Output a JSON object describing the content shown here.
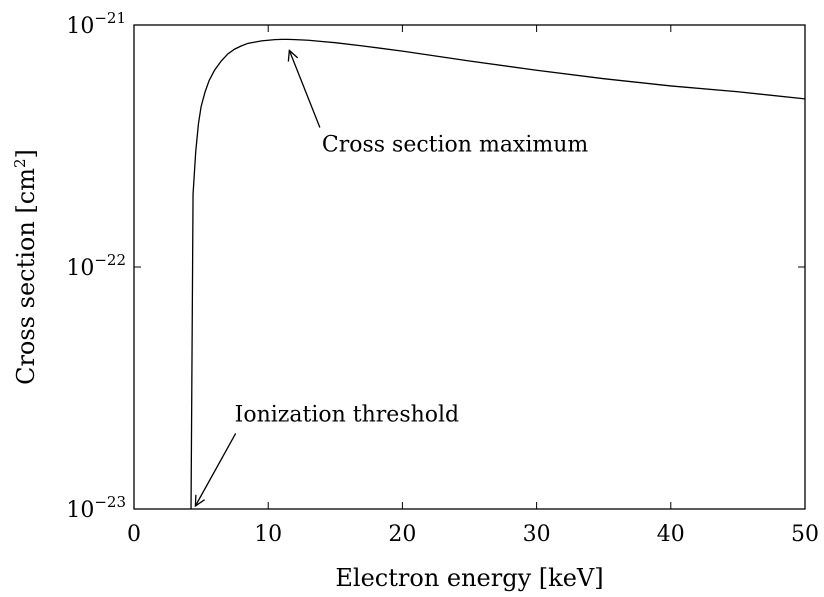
{
  "chart_data": {
    "type": "line",
    "title": "",
    "xlabel": "Electron energy [keV]",
    "ylabel": "Cross section [cm",
    "ylabel_sup": "2",
    "ylabel_close": "]",
    "xlim": [
      0,
      50
    ],
    "ylim": [
      1e-23,
      1e-21
    ],
    "yscale": "log",
    "grid": false,
    "legend": "none",
    "x_ticks": [
      0,
      10,
      20,
      30,
      40,
      50
    ],
    "x_tick_labels": [
      "0",
      "10",
      "20",
      "30",
      "40",
      "50"
    ],
    "y_ticks": [
      1e-23,
      1e-22,
      1e-21
    ],
    "y_tick_bases": [
      "10",
      "10",
      "10"
    ],
    "y_tick_exponents": [
      "−23",
      "−22",
      "−21"
    ],
    "series": [
      {
        "color": "#000000",
        "x": [
          4.25,
          4.4,
          4.6,
          4.8,
          5.0,
          5.3,
          5.6,
          6.0,
          6.5,
          7.0,
          7.5,
          8.0,
          8.5,
          9.0,
          9.5,
          10.0,
          10.5,
          11.0,
          11.5,
          12.0,
          13.0,
          14.0,
          15.0,
          17.0,
          20.0,
          25.0,
          30.0,
          35.0,
          40.0,
          45.0,
          50.0
        ],
        "y": [
          1e-23,
          2e-22,
          3e-22,
          3.9e-22,
          4.6e-22,
          5.3e-22,
          5.9e-22,
          6.5e-22,
          7.1e-22,
          7.6e-22,
          7.95e-22,
          8.2e-22,
          8.4e-22,
          8.5e-22,
          8.6e-22,
          8.65e-22,
          8.7e-22,
          8.72e-22,
          8.72e-22,
          8.7e-22,
          8.65e-22,
          8.55e-22,
          8.45e-22,
          8.2e-22,
          7.8e-22,
          7.1e-22,
          6.5e-22,
          6e-22,
          5.6e-22,
          5.3e-22,
          4.95e-22
        ]
      }
    ],
    "annotations": [
      {
        "text": "Cross section maximum",
        "arrow_to": [
          11.5,
          8.72e-22
        ],
        "text_at": [
          14,
          3e-22
        ]
      },
      {
        "text": "Ionization threshold",
        "arrow_to": [
          4.5,
          1e-23
        ],
        "text_at": [
          7.5,
          2.3e-23
        ]
      }
    ]
  }
}
